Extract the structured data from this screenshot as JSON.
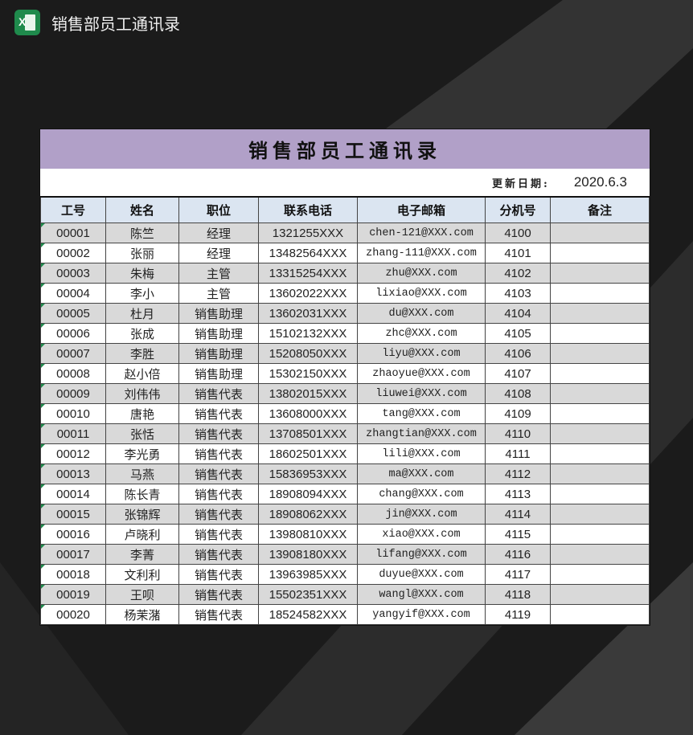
{
  "app": {
    "title": "销售部员工通讯录",
    "icon": "excel-icon"
  },
  "sheet": {
    "title": "销售部员工通讯录",
    "date_label": "更新日期:",
    "date_value": "2020.6.3",
    "colors": {
      "title_band": "#b1a0c8",
      "header": "#dbe5f1",
      "stripe": "#d9d9d9"
    },
    "headers": [
      "工号",
      "姓名",
      "职位",
      "联系电话",
      "电子邮箱",
      "分机号",
      "备注"
    ],
    "rows": [
      [
        "00001",
        "陈竺",
        "经理",
        "1321255XXX",
        "chen-121@XXX.com",
        "4100",
        ""
      ],
      [
        "00002",
        "张丽",
        "经理",
        "13482564XXX",
        "zhang-111@XXX.com",
        "4101",
        ""
      ],
      [
        "00003",
        "朱梅",
        "主管",
        "13315254XXX",
        "zhu@XXX.com",
        "4102",
        ""
      ],
      [
        "00004",
        "李小",
        "主管",
        "13602022XXX",
        "lixiao@XXX.com",
        "4103",
        ""
      ],
      [
        "00005",
        "杜月",
        "销售助理",
        "13602031XXX",
        "du@XXX.com",
        "4104",
        ""
      ],
      [
        "00006",
        "张成",
        "销售助理",
        "15102132XXX",
        "zhc@XXX.com",
        "4105",
        ""
      ],
      [
        "00007",
        "李胜",
        "销售助理",
        "15208050XXX",
        "liyu@XXX.com",
        "4106",
        ""
      ],
      [
        "00008",
        "赵小倍",
        "销售助理",
        "15302150XXX",
        "zhaoyue@XXX.com",
        "4107",
        ""
      ],
      [
        "00009",
        "刘伟伟",
        "销售代表",
        "13802015XXX",
        "liuwei@XXX.com",
        "4108",
        ""
      ],
      [
        "00010",
        "唐艳",
        "销售代表",
        "13608000XXX",
        "tang@XXX.com",
        "4109",
        ""
      ],
      [
        "00011",
        "张恬",
        "销售代表",
        "13708501XXX",
        "zhangtian@XXX.com",
        "4110",
        ""
      ],
      [
        "00012",
        "李光勇",
        "销售代表",
        "18602501XXX",
        "lili@XXX.com",
        "4111",
        ""
      ],
      [
        "00013",
        "马燕",
        "销售代表",
        "15836953XXX",
        "ma@XXX.com",
        "4112",
        ""
      ],
      [
        "00014",
        "陈长青",
        "销售代表",
        "18908094XXX",
        "chang@XXX.com",
        "4113",
        ""
      ],
      [
        "00015",
        "张锦辉",
        "销售代表",
        "18908062XXX",
        "jin@XXX.com",
        "4114",
        ""
      ],
      [
        "00016",
        "卢晓利",
        "销售代表",
        "13980810XXX",
        "xiao@XXX.com",
        "4115",
        ""
      ],
      [
        "00017",
        "李菁",
        "销售代表",
        "13908180XXX",
        "lifang@XXX.com",
        "4116",
        ""
      ],
      [
        "00018",
        "文利利",
        "销售代表",
        "13963985XXX",
        "duyue@XXX.com",
        "4117",
        ""
      ],
      [
        "00019",
        "王呗",
        "销售代表",
        "15502351XXX",
        "wangl@XXX.com",
        "4118",
        ""
      ],
      [
        "00020",
        "杨茉潴",
        "销售代表",
        "18524582XXX",
        "yangyif@XXX.com",
        "4119",
        ""
      ]
    ]
  }
}
